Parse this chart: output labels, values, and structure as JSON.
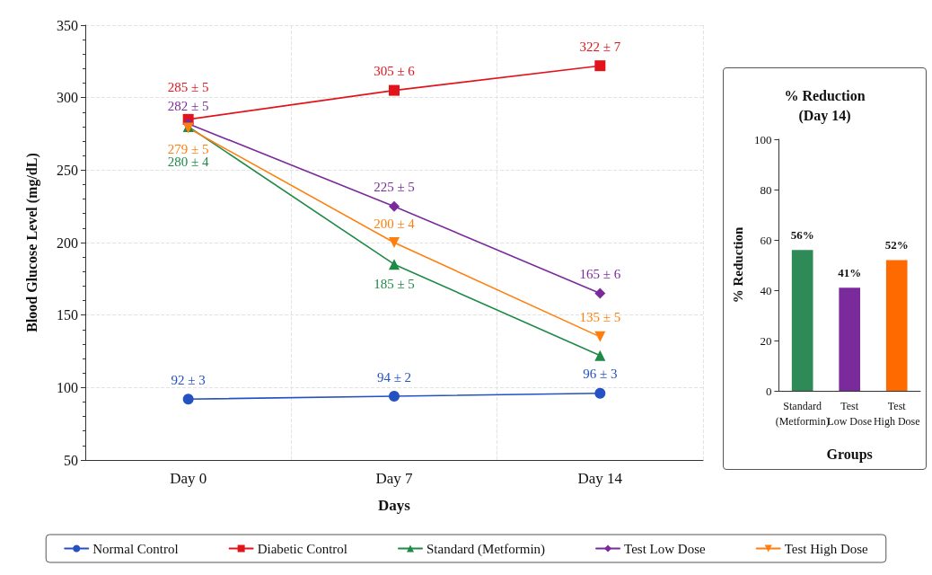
{
  "chart_data": [
    {
      "type": "line",
      "xlabel": "Days",
      "ylabel": "Blood Glucose Level (mg/dL)",
      "categories": [
        "Day 0",
        "Day 7",
        "Day 14"
      ],
      "ylim": [
        50,
        350
      ],
      "yticks": [
        50,
        100,
        150,
        200,
        250,
        300,
        350
      ],
      "grid": true,
      "legend": "bottom",
      "line_style": "solid",
      "series": [
        {
          "name": "Normal Control",
          "color": "#2452c2",
          "marker": "circle",
          "values": [
            92,
            94,
            96
          ],
          "value_labels": [
            "92 ± 3",
            "94 ± 2",
            "96 ± 3"
          ]
        },
        {
          "name": "Diabetic Control",
          "color": "#e3131b",
          "marker": "square",
          "values": [
            285,
            305,
            322
          ],
          "value_labels": [
            "285 ± 5",
            "305 ± 6",
            "322 ± 7"
          ]
        },
        {
          "name": "Standard (Metformin)",
          "color": "#1e8a45",
          "marker": "triangle",
          "values": [
            280,
            185,
            122
          ],
          "value_labels": [
            "280 ± 4",
            "185 ± 5",
            null
          ]
        },
        {
          "name": "Test Low Dose",
          "color": "#7b2a9c",
          "marker": "diamond",
          "values": [
            282,
            225,
            165
          ],
          "value_labels": [
            "282 ± 5",
            "225 ± 5",
            "165 ± 6"
          ]
        },
        {
          "name": "Test High Dose",
          "color": "#ff7f0e",
          "marker": "triangle-down",
          "values": [
            279,
            200,
            135
          ],
          "value_labels": [
            "279 ± 5",
            "200 ± 4",
            "135 ± 5"
          ]
        }
      ]
    },
    {
      "type": "bar",
      "title": "% Reduction\n(Day 14)",
      "xlabel": "Groups",
      "ylabel": "% Reduction",
      "categories": [
        "Standard\n(Metformin)",
        "Test\nLow Dose",
        "Test\nHigh Dose"
      ],
      "values": [
        56,
        41,
        52
      ],
      "colors": [
        "#2e8b57",
        "#7b2a9c",
        "#ff6a00"
      ],
      "value_labels": [
        "56%",
        "41%",
        "52%"
      ],
      "ylim": [
        0,
        100
      ],
      "yticks": [
        0,
        20,
        40,
        60,
        80,
        100
      ],
      "grid": false
    }
  ]
}
